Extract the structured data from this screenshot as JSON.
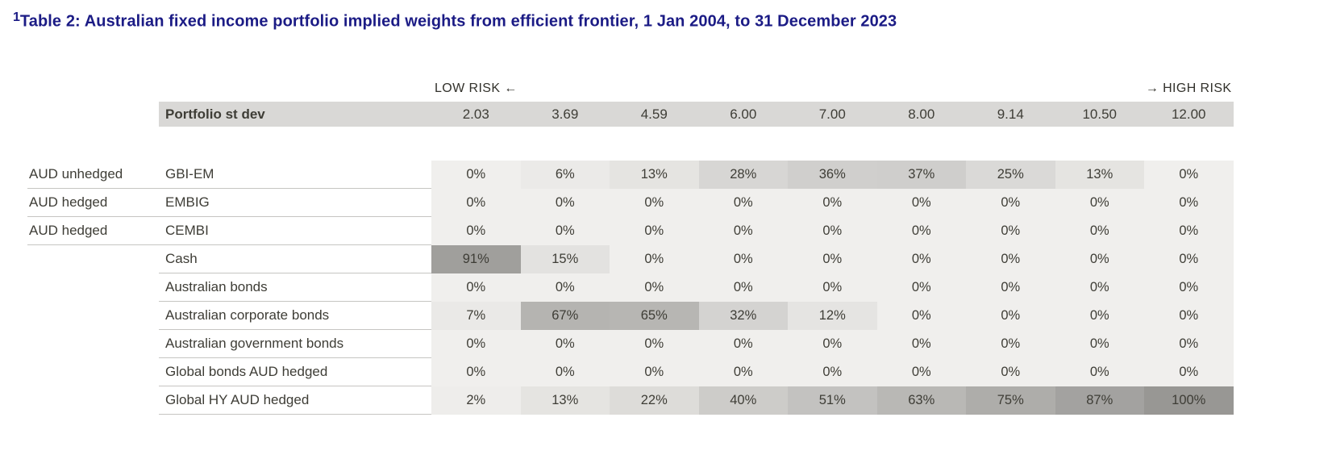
{
  "colors": {
    "title_navy": "#1b1b85",
    "header_band": "#d9d8d6",
    "cell_base": "#f0efed",
    "cell_dark": "#989794",
    "table_text": "#3e3d36",
    "risk_text": "#32312b",
    "row_line": "#c6c5c2"
  },
  "title": {
    "superscript": "1",
    "text": "Table 2: Australian fixed income portfolio implied weights from efficient frontier, 1 Jan 2004, to 31 December 2023"
  },
  "chart_data": {
    "type": "table",
    "title": "Australian fixed income portfolio implied weights from efficient frontier, 1 Jan 2004, to 31 December 2023",
    "low_risk_label": "LOW RISK ←",
    "high_risk_label": "→ HIGH RISK",
    "row_header": "Portfolio st dev",
    "columns": [
      "2.03",
      "3.69",
      "4.59",
      "6.00",
      "7.00",
      "8.00",
      "9.14",
      "10.50",
      "12.00"
    ],
    "rows": [
      {
        "group": "AUD unhedged",
        "asset": "GBI-EM",
        "weights_pct": [
          0,
          6,
          13,
          28,
          36,
          37,
          25,
          13,
          0
        ]
      },
      {
        "group": "AUD hedged",
        "asset": "EMBIG",
        "weights_pct": [
          0,
          0,
          0,
          0,
          0,
          0,
          0,
          0,
          0
        ]
      },
      {
        "group": "AUD hedged",
        "asset": "CEMBI",
        "weights_pct": [
          0,
          0,
          0,
          0,
          0,
          0,
          0,
          0,
          0
        ]
      },
      {
        "group": "",
        "asset": "Cash",
        "weights_pct": [
          91,
          15,
          0,
          0,
          0,
          0,
          0,
          0,
          0
        ]
      },
      {
        "group": "",
        "asset": "Australian bonds",
        "weights_pct": [
          0,
          0,
          0,
          0,
          0,
          0,
          0,
          0,
          0
        ]
      },
      {
        "group": "",
        "asset": "Australian corporate bonds",
        "weights_pct": [
          7,
          67,
          65,
          32,
          12,
          0,
          0,
          0,
          0
        ]
      },
      {
        "group": "",
        "asset": "Australian government bonds",
        "weights_pct": [
          0,
          0,
          0,
          0,
          0,
          0,
          0,
          0,
          0
        ]
      },
      {
        "group": "",
        "asset": "Global bonds AUD hedged",
        "weights_pct": [
          0,
          0,
          0,
          0,
          0,
          0,
          0,
          0,
          0
        ]
      },
      {
        "group": "",
        "asset": "Global HY AUD hedged",
        "weights_pct": [
          2,
          13,
          22,
          40,
          51,
          63,
          75,
          87,
          100
        ]
      }
    ],
    "legend": "grey heatmap shading, darker cell = higher implied weight",
    "value_range_pct": [
      0,
      100
    ]
  }
}
